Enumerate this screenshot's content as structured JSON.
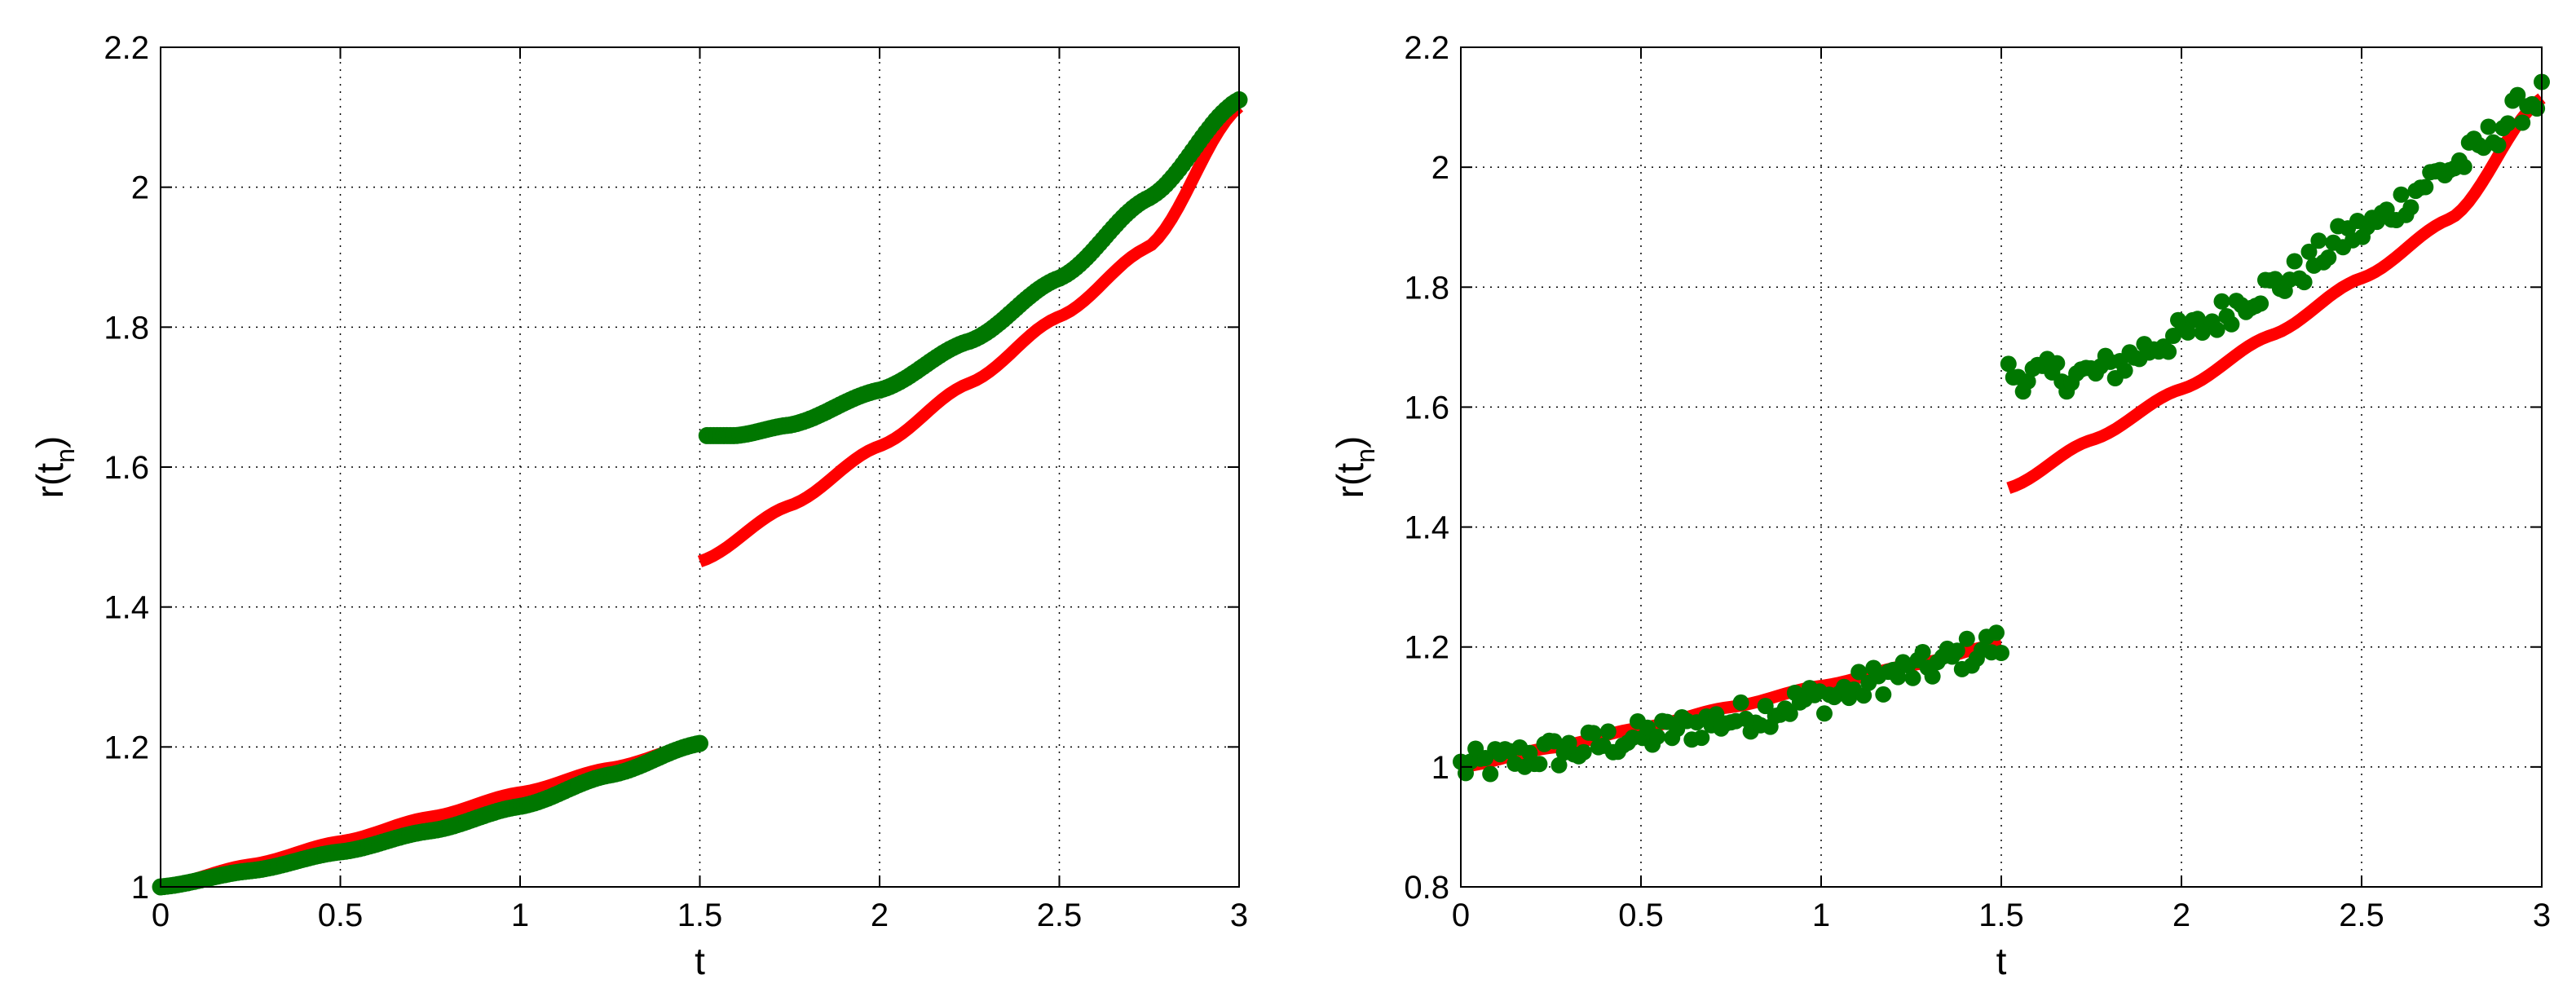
{
  "chart_data": [
    {
      "type": "line+scatter",
      "panel": "left",
      "xlabel": "t",
      "ylabel": "r(t",
      "ylabel_subscript": "n",
      "ylabel_close": ")",
      "xlim": [
        0,
        3
      ],
      "ylim": [
        1,
        2.2
      ],
      "xticks": [
        0,
        0.5,
        1,
        1.5,
        2,
        2.5,
        3
      ],
      "xtick_labels": [
        "0",
        "0.5",
        "1",
        "1.5",
        "2",
        "2.5",
        "3"
      ],
      "yticks": [
        1,
        1.2,
        1.4,
        1.6,
        1.8,
        2,
        2.2
      ],
      "ytick_labels": [
        "1",
        "1.2",
        "1.4",
        "1.6",
        "1.8",
        "2",
        "2.2"
      ],
      "grid": true,
      "legend": "none",
      "series": [
        {
          "kind": "line",
          "color": "#ff0000",
          "segments": [
            [
              [
                0,
                1.0
              ],
              [
                0.25,
                1.032
              ],
              [
                0.5,
                1.065
              ],
              [
                0.75,
                1.1
              ],
              [
                1.0,
                1.135
              ],
              [
                1.25,
                1.17
              ],
              [
                1.5,
                1.205
              ]
            ],
            [
              [
                1.5,
                1.465
              ],
              [
                1.75,
                1.545
              ],
              [
                2.0,
                1.63
              ],
              [
                2.25,
                1.72
              ],
              [
                2.5,
                1.815
              ],
              [
                2.75,
                1.915
              ],
              [
                3.0,
                2.115
              ]
            ]
          ]
        },
        {
          "kind": "markers",
          "color": "#007700",
          "segments": [
            [
              [
                0,
                1.0
              ],
              [
                0.25,
                1.023
              ],
              [
                0.5,
                1.05
              ],
              [
                0.75,
                1.08
              ],
              [
                1.0,
                1.115
              ],
              [
                1.25,
                1.16
              ],
              [
                1.5,
                1.205
              ]
            ],
            [
              [
                1.52,
                1.645
              ],
              [
                1.6,
                1.645
              ],
              [
                1.75,
                1.66
              ],
              [
                2.0,
                1.71
              ],
              [
                2.25,
                1.78
              ],
              [
                2.5,
                1.87
              ],
              [
                2.75,
                1.985
              ],
              [
                3.0,
                2.125
              ]
            ]
          ]
        }
      ]
    },
    {
      "type": "line+scatter",
      "panel": "right",
      "xlabel": "t",
      "ylabel": "r(t",
      "ylabel_subscript": "n",
      "ylabel_close": ")",
      "xlim": [
        0,
        3
      ],
      "ylim": [
        0.8,
        2.2
      ],
      "xticks": [
        0,
        0.5,
        1,
        1.5,
        2,
        2.5,
        3
      ],
      "xtick_labels": [
        "0",
        "0.5",
        "1",
        "1.5",
        "2",
        "2.5",
        "3"
      ],
      "yticks": [
        0.8,
        1,
        1.2,
        1.4,
        1.6,
        1.8,
        2,
        2.2
      ],
      "ytick_labels": [
        "0.8",
        "1",
        "1.2",
        "1.4",
        "1.6",
        "1.8",
        "2",
        "2.2"
      ],
      "grid": true,
      "legend": "none",
      "series": [
        {
          "kind": "line",
          "color": "#ff0000",
          "segments": [
            [
              [
                0,
                1.0
              ],
              [
                0.25,
                1.032
              ],
              [
                0.5,
                1.065
              ],
              [
                0.75,
                1.1
              ],
              [
                1.0,
                1.135
              ],
              [
                1.25,
                1.17
              ],
              [
                1.5,
                1.205
              ]
            ],
            [
              [
                1.52,
                1.465
              ],
              [
                1.75,
                1.545
              ],
              [
                2.0,
                1.63
              ],
              [
                2.25,
                1.72
              ],
              [
                2.5,
                1.815
              ],
              [
                2.75,
                1.915
              ],
              [
                3.0,
                2.115
              ]
            ]
          ]
        },
        {
          "kind": "noisy-markers",
          "color": "#007700",
          "noise_amplitude": 0.028,
          "segments": [
            [
              [
                0,
                1.0
              ],
              [
                0.25,
                1.023
              ],
              [
                0.5,
                1.05
              ],
              [
                0.75,
                1.08
              ],
              [
                1.0,
                1.115
              ],
              [
                1.25,
                1.16
              ],
              [
                1.5,
                1.205
              ]
            ],
            [
              [
                1.52,
                1.655
              ],
              [
                1.6,
                1.652
              ],
              [
                1.75,
                1.655
              ],
              [
                2.0,
                1.72
              ],
              [
                2.25,
                1.8
              ],
              [
                2.5,
                1.895
              ],
              [
                2.75,
                2.0
              ],
              [
                3.0,
                2.12
              ]
            ]
          ]
        }
      ]
    }
  ]
}
